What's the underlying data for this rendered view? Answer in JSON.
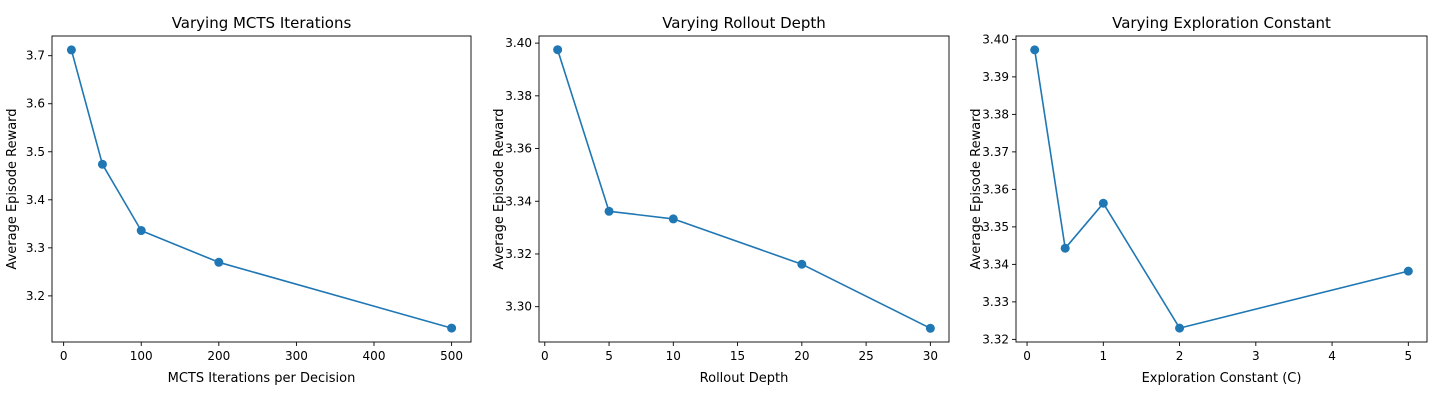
{
  "chart_data": [
    {
      "type": "line",
      "title": "Varying MCTS Iterations",
      "xlabel": "MCTS Iterations per Decision",
      "ylabel": "Average Episode Reward",
      "x": [
        10,
        50,
        100,
        200,
        500
      ],
      "y": [
        3.712,
        3.474,
        3.336,
        3.27,
        3.133
      ],
      "xlim": [
        -15,
        525
      ],
      "ylim": [
        3.104,
        3.741
      ],
      "xticks": [
        0,
        100,
        200,
        300,
        400,
        500
      ],
      "xtick_labels": [
        "0",
        "100",
        "200",
        "300",
        "400",
        "500"
      ],
      "yticks": [
        3.2,
        3.3,
        3.4,
        3.5,
        3.6,
        3.7
      ],
      "ytick_labels": [
        "3.2",
        "3.3",
        "3.4",
        "3.5",
        "3.6",
        "3.7"
      ],
      "color": "#1f77b4",
      "grid": false,
      "legend": false
    },
    {
      "type": "line",
      "title": "Varying Rollout Depth",
      "xlabel": "Rollout Depth",
      "ylabel": "Average Episode Reward",
      "x": [
        1,
        5,
        10,
        20,
        30
      ],
      "y": [
        3.3975,
        3.3362,
        3.3333,
        3.3161,
        3.2918
      ],
      "xlim": [
        -0.45,
        31.45
      ],
      "ylim": [
        3.2866,
        3.4027
      ],
      "xticks": [
        0,
        5,
        10,
        15,
        20,
        25,
        30
      ],
      "xtick_labels": [
        "0",
        "5",
        "10",
        "15",
        "20",
        "25",
        "30"
      ],
      "yticks": [
        3.3,
        3.32,
        3.34,
        3.36,
        3.38,
        3.4
      ],
      "ytick_labels": [
        "3.30",
        "3.32",
        "3.34",
        "3.36",
        "3.38",
        "3.40"
      ],
      "color": "#1f77b4",
      "grid": false,
      "legend": false
    },
    {
      "type": "line",
      "title": "Varying Exploration Constant",
      "xlabel": "Exploration Constant (C)",
      "ylabel": "Average Episode Reward",
      "x": [
        0.1,
        0.5,
        1,
        2,
        5
      ],
      "y": [
        3.3972,
        3.3443,
        3.3563,
        3.323,
        3.3382
      ],
      "xlim": [
        -0.145,
        5.245
      ],
      "ylim": [
        3.3193,
        3.4009
      ],
      "xticks": [
        0,
        1,
        2,
        3,
        4,
        5
      ],
      "xtick_labels": [
        "0",
        "1",
        "2",
        "3",
        "4",
        "5"
      ],
      "yticks": [
        3.32,
        3.33,
        3.34,
        3.35,
        3.36,
        3.37,
        3.38,
        3.39,
        3.4
      ],
      "ytick_labels": [
        "3.32",
        "3.33",
        "3.34",
        "3.35",
        "3.36",
        "3.37",
        "3.38",
        "3.39",
        "3.40"
      ],
      "color": "#1f77b4",
      "grid": false,
      "legend": false
    }
  ]
}
